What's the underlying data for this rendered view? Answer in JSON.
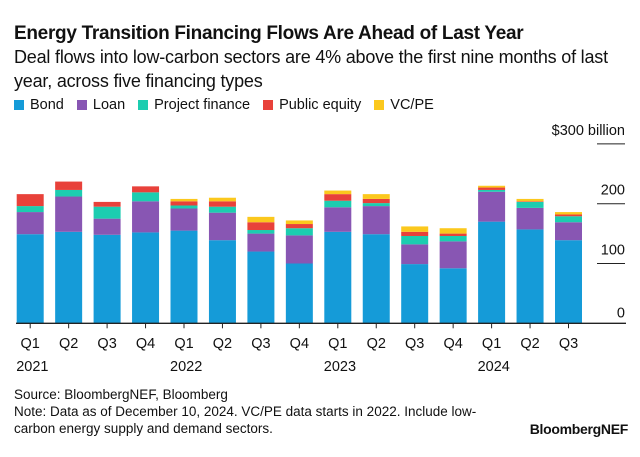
{
  "title": "Energy Transition Financing Flows Are Ahead of Last Year",
  "subtitle": "Deal flows into low-carbon sectors are 4% above the first nine months of last year, across five financing types",
  "source": "Source: BloombergNEF, Bloomberg",
  "note": "Note: Data as of December 10, 2024. VC/PE data starts in 2022. Include low-carbon energy supply and demand sectors.",
  "brand": "BloombergNEF",
  "chart_data": {
    "type": "bar",
    "stacked": true,
    "ylabel_unit": "$300 billion",
    "ylim": [
      0,
      300
    ],
    "yticks": [
      "0",
      "100",
      "200",
      "$300 billion"
    ],
    "ytick_values": [
      0,
      100,
      200,
      300
    ],
    "legend_position": "top-left",
    "categories": [
      "Q1 2021",
      "Q2 2021",
      "Q3 2021",
      "Q4 2021",
      "Q1 2022",
      "Q2 2022",
      "Q3 2022",
      "Q4 2022",
      "Q1 2023",
      "Q2 2023",
      "Q3 2023",
      "Q4 2023",
      "Q1 2024",
      "Q2 2024",
      "Q3 2024"
    ],
    "tick_labels": [
      [
        "Q1",
        "2021"
      ],
      [
        "Q2",
        ""
      ],
      [
        "Q3",
        ""
      ],
      [
        "Q4",
        ""
      ],
      [
        "Q1",
        "2022"
      ],
      [
        "Q2",
        ""
      ],
      [
        "Q3",
        ""
      ],
      [
        "Q4",
        ""
      ],
      [
        "Q1",
        "2023"
      ],
      [
        "Q2",
        ""
      ],
      [
        "Q3",
        ""
      ],
      [
        "Q4",
        ""
      ],
      [
        "Q1",
        "2024"
      ],
      [
        "Q2",
        ""
      ],
      [
        "Q3",
        ""
      ]
    ],
    "series": [
      {
        "name": "Bond",
        "color": "#159bd8",
        "values": [
          149,
          153,
          148,
          152,
          155,
          139,
          120,
          100,
          153,
          149,
          99,
          92,
          170,
          157,
          139
        ]
      },
      {
        "name": "Loan",
        "color": "#8856b3",
        "values": [
          37,
          59,
          27,
          52,
          37,
          46,
          30,
          47,
          41,
          47,
          33,
          45,
          50,
          36,
          30
        ]
      },
      {
        "name": "Project finance",
        "color": "#1ccdb0",
        "values": [
          10,
          11,
          20,
          15,
          5,
          10,
          6,
          12,
          11,
          5,
          14,
          9,
          3,
          10,
          10
        ]
      },
      {
        "name": "Public equity",
        "color": "#e8413a",
        "values": [
          20,
          14,
          8,
          10,
          7,
          9,
          13,
          7,
          11,
          7,
          7,
          4,
          4,
          1,
          3
        ]
      },
      {
        "name": "VC/PE",
        "color": "#fbc81d",
        "values": [
          0,
          0,
          0,
          0,
          4,
          6,
          9,
          6,
          6,
          8,
          9,
          9,
          3,
          4,
          4
        ]
      }
    ]
  }
}
